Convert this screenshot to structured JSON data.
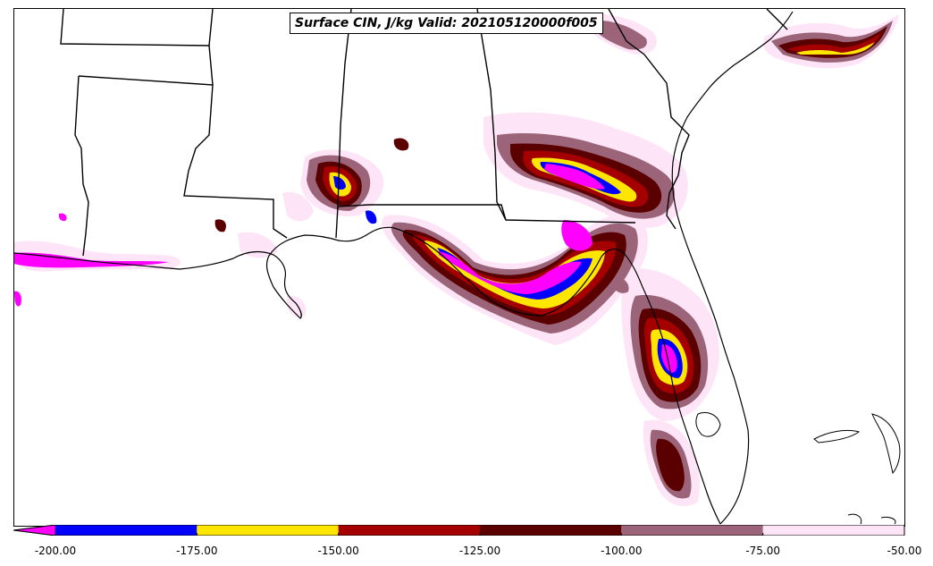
{
  "title": "Surface CIN, J/kg Valid: 202105120000f005",
  "colorbar": {
    "min": -200,
    "max": -50,
    "extend": "min",
    "under_color": "#ff00ff",
    "bins": [
      {
        "from": -200,
        "to": -175,
        "color": "#0000ff"
      },
      {
        "from": -175,
        "to": -150,
        "color": "#ffe600"
      },
      {
        "from": -150,
        "to": -125,
        "color": "#a50000"
      },
      {
        "from": -125,
        "to": -100,
        "color": "#5a0000"
      },
      {
        "from": -100,
        "to": -75,
        "color": "#9b6478"
      },
      {
        "from": -75,
        "to": -50,
        "color": "#fde4f7"
      }
    ],
    "tick_labels": [
      "-200.00",
      "-175.00",
      "-150.00",
      "-125.00",
      "-100.00",
      "-75.00",
      "-50.00"
    ],
    "tick_values": [
      -200,
      -175,
      -150,
      -125,
      -100,
      -75,
      -50
    ]
  },
  "colors": {
    "light_pink": "#fde4f7",
    "mauve": "#9b6478",
    "dark_red": "#5a0000",
    "red": "#a50000",
    "yellow": "#ffe600",
    "blue": "#0000ff",
    "magenta": "#ff00ff",
    "boundary": "#000000"
  }
}
